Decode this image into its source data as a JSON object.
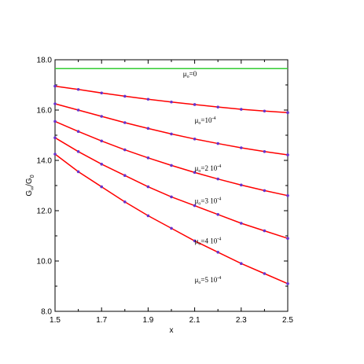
{
  "chart_data": {
    "type": "line",
    "title": "",
    "xlabel": "x",
    "ylabel_main": "G",
    "ylabel_sub1": "∞",
    "ylabel_slash": "/G",
    "ylabel_sub2": "0",
    "xlim": [
      1.5,
      2.5
    ],
    "ylim": [
      8.0,
      18.0
    ],
    "xticks": [
      1.5,
      1.7,
      1.9,
      2.1,
      2.3,
      2.5
    ],
    "xtick_labels": [
      "1.5",
      "1.7",
      "1.9",
      "2.1",
      "2.3",
      "2.5"
    ],
    "yticks": [
      8.0,
      10.0,
      12.0,
      14.0,
      16.0,
      18.0
    ],
    "ytick_labels": [
      "8.0",
      "10.0",
      "12.0",
      "14.0",
      "16.0",
      "18.0"
    ],
    "grid": false,
    "series": [
      {
        "label_mu": "μ",
        "label_sub": "o",
        "label_rest": "=0",
        "label_sup": "",
        "color": "#33cc33",
        "markers": false,
        "x": [
          1.5,
          2.5
        ],
        "y": [
          17.65,
          17.65
        ],
        "label_at": [
          2.05,
          17.35
        ]
      },
      {
        "label_mu": "μ",
        "label_sub": "o",
        "label_rest": "=10",
        "label_sup": "-4",
        "color": "#ff0000",
        "markers": true,
        "x": [
          1.5,
          1.6,
          1.7,
          1.8,
          1.9,
          2.0,
          2.1,
          2.2,
          2.3,
          2.4,
          2.5
        ],
        "y": [
          16.95,
          16.82,
          16.68,
          16.55,
          16.43,
          16.32,
          16.22,
          16.12,
          16.03,
          15.96,
          15.9
        ],
        "label_at": [
          2.1,
          15.5
        ]
      },
      {
        "label_mu": "μ",
        "label_sub": "o",
        "label_rest": "=2 10",
        "label_sup": "-4",
        "color": "#ff0000",
        "markers": true,
        "x": [
          1.5,
          1.6,
          1.7,
          1.8,
          1.9,
          2.0,
          2.1,
          2.2,
          2.3,
          2.4,
          2.5
        ],
        "y": [
          16.25,
          16.0,
          15.75,
          15.5,
          15.27,
          15.05,
          14.85,
          14.67,
          14.5,
          14.35,
          14.22
        ],
        "label_at": [
          2.1,
          13.6
        ]
      },
      {
        "label_mu": "μ",
        "label_sub": "o",
        "label_rest": "=3 10",
        "label_sup": "-4",
        "color": "#ff0000",
        "markers": true,
        "x": [
          1.5,
          1.6,
          1.7,
          1.8,
          1.9,
          2.0,
          2.1,
          2.2,
          2.3,
          2.4,
          2.5
        ],
        "y": [
          15.55,
          15.15,
          14.77,
          14.42,
          14.1,
          13.8,
          13.52,
          13.26,
          13.02,
          12.8,
          12.6
        ],
        "label_at": [
          2.1,
          12.3
        ]
      },
      {
        "label_mu": "μ",
        "label_sub": "o",
        "label_rest": "=4 10",
        "label_sup": "-4",
        "color": "#ff0000",
        "markers": true,
        "x": [
          1.5,
          1.6,
          1.7,
          1.8,
          1.9,
          2.0,
          2.1,
          2.2,
          2.3,
          2.4,
          2.5
        ],
        "y": [
          14.9,
          14.35,
          13.85,
          13.4,
          12.95,
          12.55,
          12.2,
          11.85,
          11.5,
          11.2,
          10.9
        ],
        "label_at": [
          2.1,
          10.7
        ]
      },
      {
        "label_mu": "μ",
        "label_sub": "o",
        "label_rest": "=5 10",
        "label_sup": "-4",
        "color": "#ff0000",
        "markers": true,
        "x": [
          1.5,
          1.6,
          1.7,
          1.8,
          1.9,
          2.0,
          2.1,
          2.2,
          2.3,
          2.4,
          2.5
        ],
        "y": [
          14.25,
          13.55,
          12.95,
          12.35,
          11.8,
          11.3,
          10.8,
          10.35,
          9.9,
          9.5,
          9.1
        ],
        "label_at": [
          2.1,
          9.15
        ]
      }
    ],
    "marker_color": "#6633cc"
  }
}
